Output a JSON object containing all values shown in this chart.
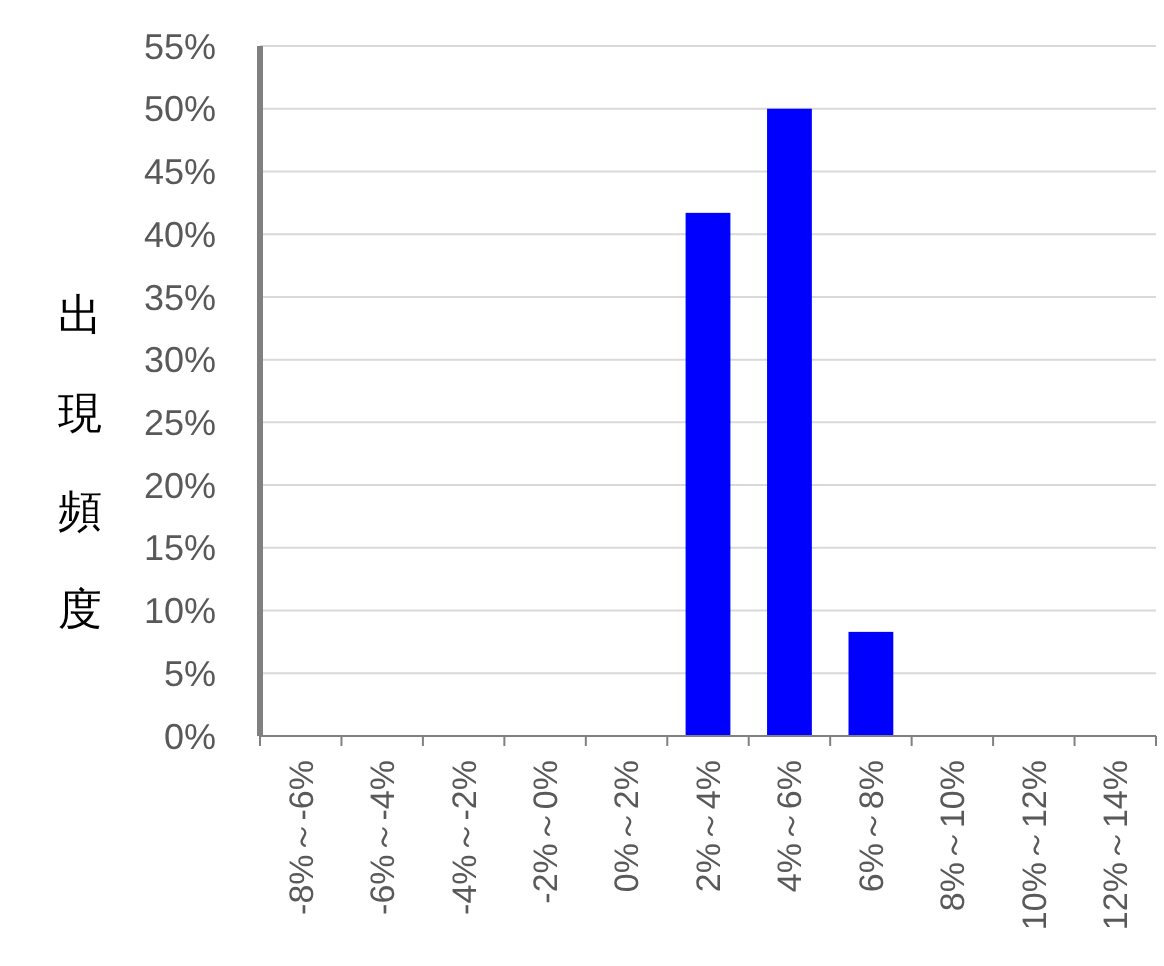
{
  "chart_data": {
    "type": "bar",
    "ylabel": "出現頻度",
    "categories": [
      "-8%～-6%",
      "-6%～-4%",
      "-4%～-2%",
      "-2%～0%",
      "0%～2%",
      "2%～4%",
      "4%～6%",
      "6%～8%",
      "8%～10%",
      "10%～12%",
      "12%～14%"
    ],
    "values": [
      0,
      0,
      0,
      0,
      0,
      41.7,
      50,
      8.3,
      0,
      0,
      0
    ],
    "color": "#0000ff",
    "ylim": [
      0,
      55
    ],
    "yticks": [
      {
        "value": 0,
        "label": "0%"
      },
      {
        "value": 5,
        "label": "5%"
      },
      {
        "value": 10,
        "label": "10%"
      },
      {
        "value": 15,
        "label": "15%"
      },
      {
        "value": 20,
        "label": "20%"
      },
      {
        "value": 25,
        "label": "25%"
      },
      {
        "value": 30,
        "label": "30%"
      },
      {
        "value": 35,
        "label": "35%"
      },
      {
        "value": 40,
        "label": "40%"
      },
      {
        "value": 45,
        "label": "45%"
      },
      {
        "value": 50,
        "label": "50%"
      },
      {
        "value": 55,
        "label": "55%"
      }
    ],
    "grid": "y"
  }
}
